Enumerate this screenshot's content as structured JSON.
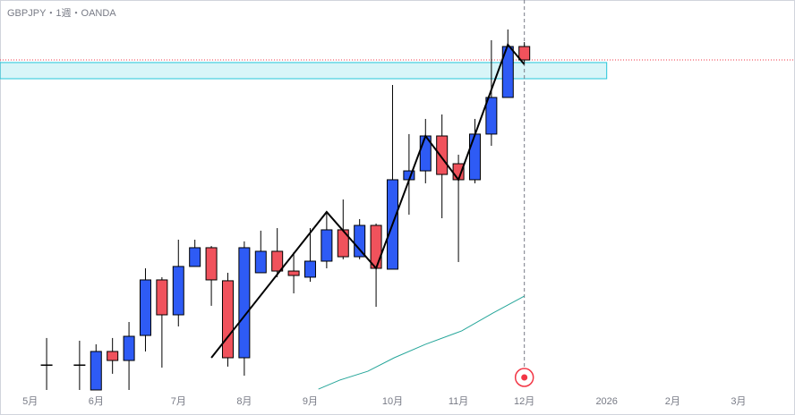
{
  "chart_data": {
    "type": "candlestick",
    "title": "GBPJPY・1週・OANDA",
    "x": [
      0,
      2,
      3,
      4,
      5,
      6,
      7,
      8,
      9,
      10,
      11,
      12,
      13,
      14,
      15,
      16,
      17,
      18,
      19,
      20,
      21,
      22,
      23,
      24,
      25,
      26,
      27,
      28,
      29
    ],
    "open": [
      187.5,
      187.5,
      185.75,
      188.44,
      187.81,
      189.56,
      193.44,
      191.0,
      194.38,
      195.69,
      193.38,
      188.0,
      193.94,
      195.44,
      194.06,
      193.63,
      194.75,
      196.94,
      195.06,
      197.25,
      194.19,
      200.44,
      201.06,
      203.5,
      201.56,
      200.44,
      203.63,
      206.19,
      209.75
    ],
    "high": [
      189.38,
      189.19,
      188.94,
      189.38,
      190.5,
      194.25,
      193.63,
      196.25,
      196.25,
      195.81,
      193.94,
      196.13,
      196.88,
      197.06,
      195.38,
      197.06,
      198.19,
      199.06,
      197.69,
      197.38,
      207.06,
      203.63,
      204.69,
      205.0,
      202.19,
      204.69,
      210.19,
      210.94,
      210.06
    ],
    "low": [
      185.75,
      185.75,
      185.75,
      186.88,
      185.75,
      188.44,
      187.31,
      190.19,
      194.38,
      191.63,
      187.38,
      186.75,
      193.94,
      193.63,
      192.5,
      193.31,
      194.25,
      194.88,
      194.88,
      191.56,
      194.19,
      198.0,
      200.19,
      197.75,
      194.69,
      200.19,
      202.81,
      206.19,
      208.63
    ],
    "close": [
      187.5,
      187.5,
      188.44,
      187.81,
      189.5,
      193.44,
      191.0,
      194.38,
      195.69,
      193.44,
      188.0,
      195.69,
      195.44,
      194.06,
      193.75,
      194.75,
      196.94,
      195.06,
      197.25,
      194.25,
      200.44,
      201.06,
      203.5,
      200.81,
      200.44,
      203.63,
      206.19,
      209.75,
      208.81
    ],
    "up_color": "#2e5bf5",
    "down_color": "#f0525c",
    "xlim": [
      -2.83,
      45.43
    ],
    "ylim": [
      185.5,
      213
    ],
    "xticks": [
      {
        "value": -1,
        "label": "5月"
      },
      {
        "value": 3,
        "label": "6月"
      },
      {
        "value": 8,
        "label": "7月"
      },
      {
        "value": 12,
        "label": "8月"
      },
      {
        "value": 16,
        "label": "9月"
      },
      {
        "value": 21,
        "label": "10月"
      },
      {
        "value": 25,
        "label": "11月"
      },
      {
        "value": 29,
        "label": "12月"
      },
      {
        "value": 34,
        "label": "2026"
      },
      {
        "value": 38,
        "label": "2月"
      },
      {
        "value": 42,
        "label": "3月"
      }
    ],
    "zone": [
      207.5,
      208.63
    ],
    "zone_end": 34,
    "zone_color": "#26c6da",
    "zigzag": {
      "x": [
        10,
        17,
        20,
        23,
        25,
        28,
        29
      ],
      "values": [
        188.0,
        198.19,
        194.25,
        203.5,
        200.44,
        209.88,
        208.5
      ],
      "color": "#000000"
    },
    "ma": {
      "x": [
        16.5,
        17.8,
        19.5,
        21.1,
        23,
        25.2,
        27.1,
        29
      ],
      "values": [
        185.81,
        186.44,
        187.06,
        188.0,
        188.94,
        189.88,
        191.13,
        192.31
      ],
      "color": "#26a69a"
    }
  }
}
